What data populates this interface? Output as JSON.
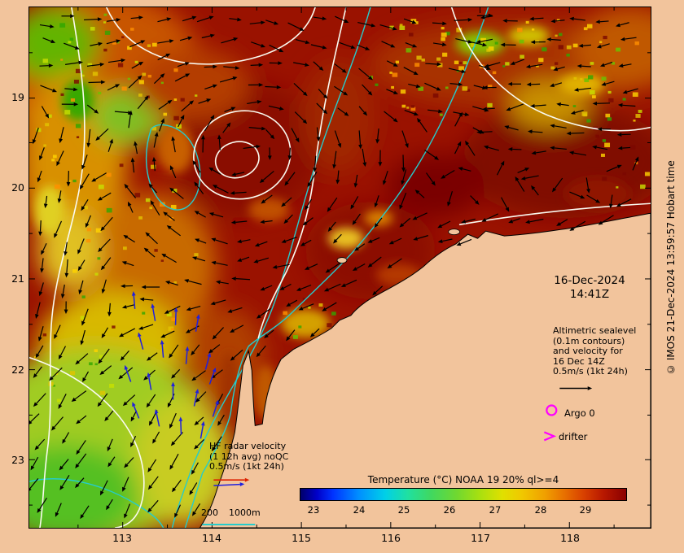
{
  "colors": {
    "background": "#f2c49c",
    "ocean_base": "#9a1200",
    "land": "#f2c49c",
    "bathy_cyan": "#25cccc",
    "contour_white": "#fafaf0",
    "hf_blue": "#2020dd",
    "hf_red": "#dd2200",
    "magenta": "#ff00ff"
  },
  "map": {
    "date": "16-Dec-2024",
    "time": "14:41Z",
    "altimetric_note": [
      "Altimetric sealevel",
      "(0.1m contours)",
      "and velocity for",
      "16 Dec 14Z",
      "0.5m/s (1kt 24h)"
    ],
    "argo_label": "Argo 0",
    "drifter_label": "drifter",
    "hf_note": [
      "HF radar velocity",
      "(1 12h avg) noQC",
      "0.5m/s (1kt 24h)"
    ],
    "scale_labels": [
      "200",
      "1000m"
    ],
    "copyright": "© IMOS 21-Dec-2024 13:59:57 Hobart time"
  },
  "colorbar": {
    "title": "Temperature (°C) NOAA 19 20% ql>=4",
    "ticks": [
      "23",
      "24",
      "25",
      "26",
      "27",
      "28",
      "29"
    ]
  },
  "axes": {
    "x": [
      "113",
      "114",
      "115",
      "116",
      "117",
      "118"
    ],
    "y": [
      "19",
      "20",
      "21",
      "22",
      "23"
    ]
  }
}
